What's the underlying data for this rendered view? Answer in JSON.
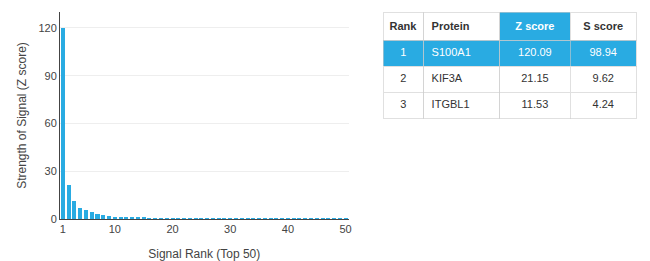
{
  "chart_data": {
    "type": "bar",
    "xlabel": "Signal Rank (Top 50)",
    "ylabel": "Strength of Signal (Z score)",
    "x": [
      1,
      2,
      3,
      4,
      5,
      6,
      7,
      8,
      9,
      10,
      11,
      12,
      13,
      14,
      15,
      16,
      17,
      18,
      19,
      20,
      21,
      22,
      23,
      24,
      25,
      26,
      27,
      28,
      29,
      30,
      31,
      32,
      33,
      34,
      35,
      36,
      37,
      38,
      39,
      40,
      41,
      42,
      43,
      44,
      45,
      46,
      47,
      48,
      49,
      50
    ],
    "values": [
      120.09,
      21.15,
      11.53,
      7.2,
      5.5,
      4.1,
      3.2,
      2.5,
      1.8,
      1.4,
      1.1,
      0.9,
      0.8,
      0.7,
      0.65,
      0.6,
      0.55,
      0.5,
      0.45,
      0.42,
      0.4,
      0.38,
      0.36,
      0.34,
      0.32,
      0.3,
      0.28,
      0.27,
      0.26,
      0.25,
      0.24,
      0.23,
      0.22,
      0.21,
      0.2,
      0.19,
      0.18,
      0.17,
      0.16,
      0.15,
      0.14,
      0.13,
      0.12,
      0.11,
      0.1,
      0.09,
      0.08,
      0.07,
      0.06,
      0.05
    ],
    "color": "#29ABE2",
    "xlim": [
      0.5,
      50.5
    ],
    "xticks": [
      1,
      10,
      20,
      30,
      40,
      50
    ],
    "ylim": [
      0,
      130
    ],
    "yticks": [
      0,
      30,
      60,
      90,
      120
    ],
    "grid": true,
    "table": {
      "header": [
        "Rank",
        "Protein",
        "Z score",
        "S score"
      ],
      "rows": [
        [
          1,
          "S100A1",
          120.09,
          98.94
        ],
        [
          2,
          "KIF3A",
          21.15,
          9.62
        ],
        [
          3,
          "ITGBL1",
          11.53,
          4.24
        ]
      ],
      "color": "#29ABE2"
    }
  }
}
